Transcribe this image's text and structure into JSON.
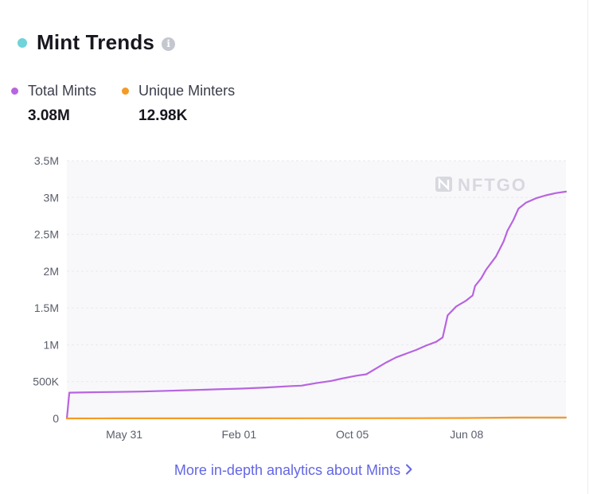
{
  "header": {
    "title": "Mint Trends",
    "info_icon": "info-icon",
    "dot_color": "#6fd3da"
  },
  "legend": [
    {
      "label": "Total Mints",
      "value": "3.08M",
      "color": "#b864e0"
    },
    {
      "label": "Unique Minters",
      "value": "12.98K",
      "color": "#f59a23"
    }
  ],
  "watermark": "NFTGO",
  "footer": {
    "link_text": "More in-depth analytics about Mints",
    "chevron_icon": "chevron-right-icon"
  },
  "chart_data": {
    "type": "line",
    "title": "",
    "xlabel": "",
    "ylabel": "",
    "x_tick_labels": [
      "May 31",
      "Feb 01",
      "Oct 05",
      "Jun 08"
    ],
    "y_tick_labels": [
      "0",
      "500K",
      "1M",
      "1.5M",
      "2M",
      "2.5M",
      "3M",
      "3.5M"
    ],
    "ylim": [
      0,
      3500000
    ],
    "grid": true,
    "legend_position": "top-left",
    "x_index_range": [
      0,
      100
    ],
    "x_tick_positions": [
      11.5,
      34.5,
      57.2,
      80.1
    ],
    "series": [
      {
        "name": "Total Mints",
        "color": "#b864e0",
        "points": [
          [
            0,
            0
          ],
          [
            0.5,
            350000
          ],
          [
            5,
            355000
          ],
          [
            10,
            360000
          ],
          [
            15,
            365000
          ],
          [
            20,
            375000
          ],
          [
            25,
            385000
          ],
          [
            30,
            395000
          ],
          [
            35,
            405000
          ],
          [
            40,
            420000
          ],
          [
            45,
            440000
          ],
          [
            47,
            445000
          ],
          [
            50,
            480000
          ],
          [
            53,
            510000
          ],
          [
            55,
            540000
          ],
          [
            58,
            580000
          ],
          [
            60,
            600000
          ],
          [
            62,
            680000
          ],
          [
            64,
            760000
          ],
          [
            66,
            830000
          ],
          [
            68,
            880000
          ],
          [
            70,
            930000
          ],
          [
            72,
            990000
          ],
          [
            74,
            1040000
          ],
          [
            75.3,
            1100000
          ],
          [
            75.8,
            1250000
          ],
          [
            76.3,
            1400000
          ],
          [
            78,
            1520000
          ],
          [
            80,
            1600000
          ],
          [
            81.3,
            1670000
          ],
          [
            81.8,
            1800000
          ],
          [
            83,
            1900000
          ],
          [
            84,
            2020000
          ],
          [
            86,
            2200000
          ],
          [
            87.5,
            2400000
          ],
          [
            88.3,
            2550000
          ],
          [
            89.5,
            2700000
          ],
          [
            90.5,
            2850000
          ],
          [
            92,
            2930000
          ],
          [
            94,
            2990000
          ],
          [
            96,
            3030000
          ],
          [
            98,
            3060000
          ],
          [
            100,
            3080000
          ]
        ]
      },
      {
        "name": "Unique Minters",
        "color": "#f59a23",
        "points": [
          [
            0,
            0
          ],
          [
            10,
            900
          ],
          [
            30,
            1500
          ],
          [
            50,
            2200
          ],
          [
            70,
            3500
          ],
          [
            80,
            5000
          ],
          [
            90,
            12000
          ],
          [
            95,
            12900
          ],
          [
            100,
            12980
          ]
        ]
      }
    ]
  }
}
